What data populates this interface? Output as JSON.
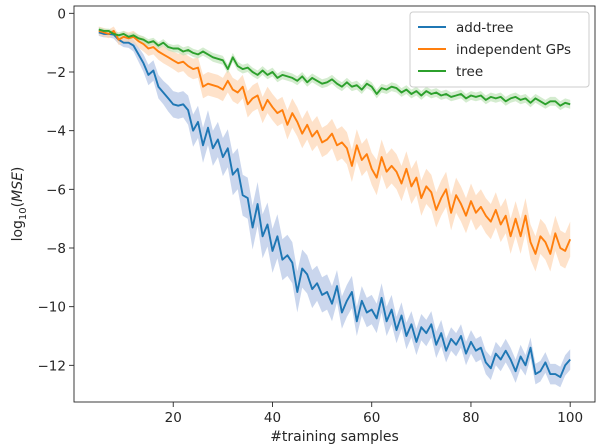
{
  "chart_data": {
    "type": "line",
    "xlabel": "#training samples",
    "ylabel_parts": {
      "prefix": "log",
      "sub": "10",
      "open": "(",
      "var": "MSE",
      "close": ")"
    },
    "xlim": [
      0,
      105
    ],
    "ylim": [
      -13.25,
      0.25
    ],
    "xticks": [
      20,
      40,
      60,
      80,
      100
    ],
    "xtick_labels": [
      "20",
      "40",
      "60",
      "80",
      "100"
    ],
    "yticks": [
      0,
      -2,
      -4,
      -6,
      -8,
      -10,
      -12
    ],
    "ytick_labels": [
      "0",
      "−2",
      "−4",
      "−6",
      "−8",
      "−10",
      "−12"
    ],
    "grid": false,
    "legend_position": "top-right",
    "x": [
      5,
      6,
      7,
      8,
      9,
      10,
      11,
      12,
      13,
      14,
      15,
      16,
      17,
      18,
      19,
      20,
      21,
      22,
      23,
      24,
      25,
      26,
      27,
      28,
      29,
      30,
      31,
      32,
      33,
      34,
      35,
      36,
      37,
      38,
      39,
      40,
      41,
      42,
      43,
      44,
      45,
      46,
      47,
      48,
      49,
      50,
      51,
      52,
      53,
      54,
      55,
      56,
      57,
      58,
      59,
      60,
      61,
      62,
      63,
      64,
      65,
      66,
      67,
      68,
      69,
      70,
      71,
      72,
      73,
      74,
      75,
      76,
      77,
      78,
      79,
      80,
      81,
      82,
      83,
      84,
      85,
      86,
      87,
      88,
      89,
      90,
      91,
      92,
      93,
      94,
      95,
      96,
      97,
      98,
      99,
      100
    ],
    "series": [
      {
        "name": "add-tree",
        "color": "#1f77b4",
        "band_color": "#b3c4e6",
        "values": [
          -0.65,
          -0.7,
          -0.7,
          -0.72,
          -0.9,
          -1.0,
          -1.0,
          -1.1,
          -1.4,
          -1.7,
          -2.1,
          -1.95,
          -2.5,
          -2.7,
          -2.9,
          -3.1,
          -3.15,
          -3.1,
          -3.3,
          -4.0,
          -3.7,
          -4.5,
          -3.9,
          -4.6,
          -4.3,
          -4.9,
          -4.6,
          -5.5,
          -5.3,
          -6.2,
          -6.3,
          -7.3,
          -6.5,
          -7.6,
          -7.2,
          -8.1,
          -7.6,
          -8.4,
          -8.25,
          -8.5,
          -9.5,
          -8.7,
          -8.9,
          -9.4,
          -9.2,
          -9.6,
          -9.5,
          -9.9,
          -9.3,
          -10.2,
          -9.8,
          -9.5,
          -10.5,
          -9.8,
          -10.2,
          -10.1,
          -10.4,
          -9.7,
          -10.5,
          -10.1,
          -10.8,
          -10.3,
          -11.0,
          -10.6,
          -11.2,
          -10.7,
          -10.9,
          -10.6,
          -11.3,
          -10.9,
          -11.5,
          -11.1,
          -11.3,
          -11.0,
          -11.6,
          -11.2,
          -11.5,
          -11.4,
          -11.9,
          -12.1,
          -11.6,
          -11.8,
          -11.5,
          -11.8,
          -12.2,
          -11.7,
          -12.0,
          -11.4,
          -12.3,
          -12.2,
          -11.9,
          -12.3,
          -12.3,
          -12.4,
          -12.0,
          -11.8
        ],
        "band": [
          0.12,
          0.12,
          0.12,
          0.14,
          0.15,
          0.15,
          0.18,
          0.2,
          0.25,
          0.3,
          0.35,
          0.35,
          0.4,
          0.4,
          0.45,
          0.45,
          0.45,
          0.45,
          0.5,
          0.55,
          0.55,
          0.6,
          0.6,
          0.6,
          0.6,
          0.65,
          0.65,
          0.7,
          0.7,
          0.7,
          0.7,
          0.75,
          0.75,
          0.75,
          0.75,
          0.75,
          0.75,
          0.7,
          0.7,
          0.7,
          0.7,
          0.65,
          0.65,
          0.65,
          0.6,
          0.6,
          0.6,
          0.6,
          0.55,
          0.55,
          0.55,
          0.55,
          0.5,
          0.5,
          0.5,
          0.5,
          0.5,
          0.5,
          0.5,
          0.5,
          0.45,
          0.45,
          0.45,
          0.45,
          0.45,
          0.45,
          0.45,
          0.45,
          0.45,
          0.45,
          0.4,
          0.4,
          0.4,
          0.4,
          0.4,
          0.4,
          0.4,
          0.4,
          0.4,
          0.4,
          0.4,
          0.4,
          0.4,
          0.4,
          0.4,
          0.4,
          0.35,
          0.35,
          0.35,
          0.35,
          0.35,
          0.35,
          0.35,
          0.35,
          0.35,
          0.35
        ]
      },
      {
        "name": "independent GPs",
        "color": "#ff7f0e",
        "band_color": "#fdd6b4",
        "values": [
          -0.6,
          -0.65,
          -0.7,
          -0.6,
          -0.9,
          -0.8,
          -0.85,
          -0.8,
          -0.95,
          -1.05,
          -1.2,
          -1.15,
          -1.3,
          -1.4,
          -1.5,
          -1.6,
          -1.7,
          -1.65,
          -1.8,
          -1.9,
          -1.85,
          -2.5,
          -2.4,
          -2.45,
          -2.5,
          -2.6,
          -2.3,
          -2.6,
          -2.7,
          -2.5,
          -3.1,
          -2.9,
          -2.8,
          -3.3,
          -2.95,
          -3.2,
          -3.4,
          -3.3,
          -3.8,
          -3.4,
          -3.7,
          -4.1,
          -3.8,
          -4.2,
          -4.0,
          -4.4,
          -4.3,
          -4.1,
          -4.5,
          -4.4,
          -4.6,
          -5.2,
          -4.5,
          -5.0,
          -4.8,
          -5.3,
          -5.6,
          -4.9,
          -5.4,
          -5.2,
          -5.4,
          -5.8,
          -5.3,
          -5.9,
          -5.6,
          -6.3,
          -5.9,
          -6.1,
          -6.7,
          -6.3,
          -6.0,
          -6.8,
          -6.2,
          -6.5,
          -6.9,
          -6.4,
          -6.8,
          -6.6,
          -6.9,
          -7.1,
          -6.7,
          -7.2,
          -6.9,
          -7.6,
          -7.0,
          -7.6,
          -6.9,
          -7.8,
          -8.2,
          -7.6,
          -7.8,
          -8.2,
          -7.5,
          -8.0,
          -8.1,
          -7.7
        ],
        "band": [
          0.15,
          0.15,
          0.15,
          0.15,
          0.18,
          0.2,
          0.2,
          0.2,
          0.22,
          0.25,
          0.25,
          0.25,
          0.28,
          0.3,
          0.3,
          0.3,
          0.32,
          0.32,
          0.35,
          0.35,
          0.35,
          0.4,
          0.4,
          0.4,
          0.4,
          0.4,
          0.4,
          0.4,
          0.4,
          0.4,
          0.45,
          0.45,
          0.45,
          0.45,
          0.45,
          0.45,
          0.45,
          0.45,
          0.5,
          0.5,
          0.5,
          0.5,
          0.5,
          0.5,
          0.5,
          0.5,
          0.5,
          0.5,
          0.55,
          0.55,
          0.55,
          0.55,
          0.55,
          0.55,
          0.55,
          0.55,
          0.6,
          0.6,
          0.6,
          0.6,
          0.6,
          0.6,
          0.6,
          0.6,
          0.6,
          0.6,
          0.6,
          0.6,
          0.6,
          0.6,
          0.6,
          0.6,
          0.6,
          0.6,
          0.6,
          0.6,
          0.6,
          0.6,
          0.6,
          0.6,
          0.6,
          0.6,
          0.6,
          0.6,
          0.6,
          0.6,
          0.6,
          0.6,
          0.6,
          0.6,
          0.6,
          0.6,
          0.6,
          0.6,
          0.6,
          0.6
        ]
      },
      {
        "name": "tree",
        "color": "#2ca02c",
        "band_color": "#c2e4bb",
        "values": [
          -0.55,
          -0.6,
          -0.6,
          -0.7,
          -0.75,
          -0.7,
          -0.8,
          -0.75,
          -0.85,
          -0.9,
          -1.0,
          -0.95,
          -1.1,
          -1.0,
          -1.15,
          -1.2,
          -1.2,
          -1.3,
          -1.25,
          -1.35,
          -1.4,
          -1.3,
          -1.4,
          -1.5,
          -1.55,
          -1.6,
          -1.9,
          -1.5,
          -1.8,
          -1.9,
          -1.85,
          -2.0,
          -2.1,
          -1.95,
          -2.1,
          -2.0,
          -2.2,
          -2.1,
          -2.15,
          -2.2,
          -2.3,
          -2.15,
          -2.35,
          -2.2,
          -2.3,
          -2.4,
          -2.35,
          -2.25,
          -2.4,
          -2.5,
          -2.35,
          -2.5,
          -2.45,
          -2.6,
          -2.4,
          -2.5,
          -2.75,
          -2.55,
          -2.6,
          -2.5,
          -2.55,
          -2.7,
          -2.6,
          -2.75,
          -2.65,
          -2.8,
          -2.65,
          -2.75,
          -2.7,
          -2.8,
          -2.75,
          -2.85,
          -2.8,
          -2.75,
          -2.9,
          -2.8,
          -2.85,
          -2.8,
          -2.95,
          -2.85,
          -2.9,
          -2.85,
          -3.0,
          -2.9,
          -2.85,
          -2.95,
          -2.9,
          -3.05,
          -2.9,
          -3.0,
          -3.1,
          -3.0,
          -3.0,
          -3.15,
          -3.05,
          -3.1
        ],
        "band": [
          0.08,
          0.08,
          0.08,
          0.1,
          0.1,
          0.1,
          0.1,
          0.1,
          0.12,
          0.12,
          0.12,
          0.12,
          0.12,
          0.12,
          0.12,
          0.12,
          0.14,
          0.14,
          0.14,
          0.14,
          0.14,
          0.14,
          0.14,
          0.15,
          0.15,
          0.15,
          0.15,
          0.15,
          0.15,
          0.15,
          0.15,
          0.15,
          0.15,
          0.15,
          0.15,
          0.15,
          0.15,
          0.15,
          0.15,
          0.15,
          0.15,
          0.15,
          0.15,
          0.15,
          0.15,
          0.15,
          0.15,
          0.15,
          0.15,
          0.15,
          0.15,
          0.15,
          0.15,
          0.15,
          0.15,
          0.15,
          0.15,
          0.15,
          0.15,
          0.15,
          0.15,
          0.15,
          0.15,
          0.15,
          0.15,
          0.15,
          0.15,
          0.15,
          0.15,
          0.15,
          0.15,
          0.15,
          0.15,
          0.15,
          0.15,
          0.15,
          0.15,
          0.15,
          0.15,
          0.15,
          0.15,
          0.15,
          0.15,
          0.15,
          0.15,
          0.15,
          0.15,
          0.15,
          0.15,
          0.15,
          0.15,
          0.15,
          0.15,
          0.15,
          0.15,
          0.15
        ]
      }
    ]
  }
}
